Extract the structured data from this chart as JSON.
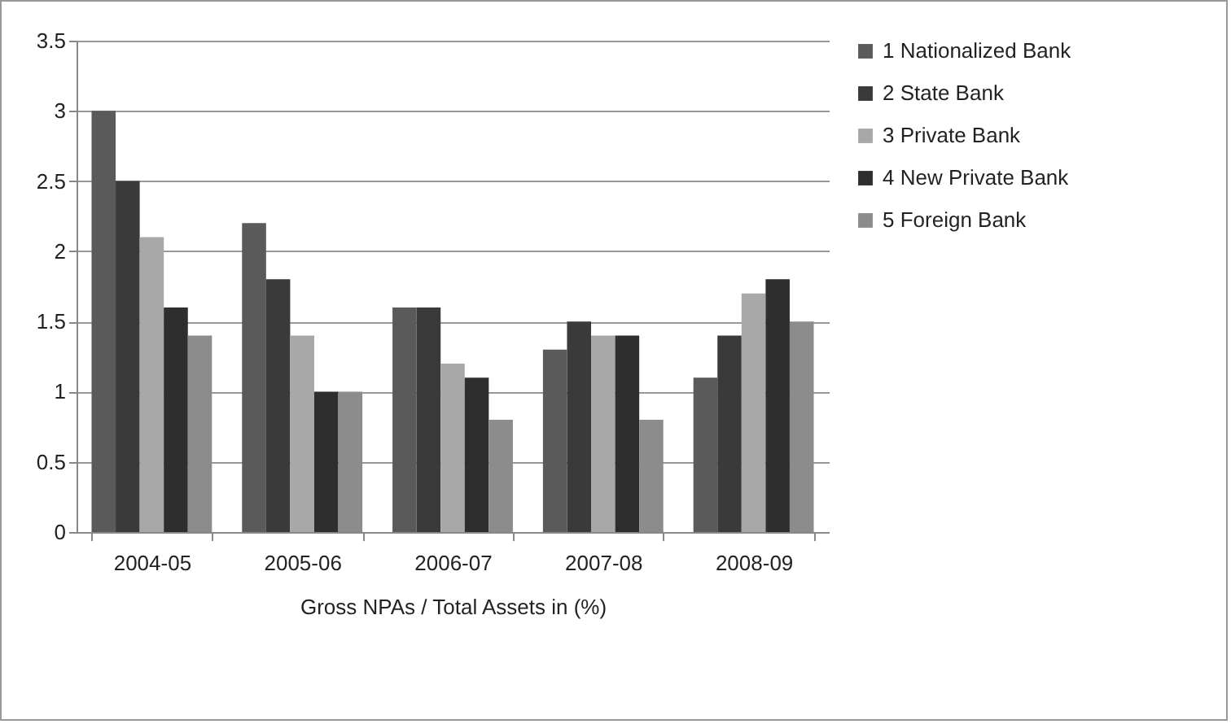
{
  "chart_data": {
    "type": "bar",
    "xlabel": "Gross NPAs / Total Assets  in (%)",
    "categories": [
      "2004-05",
      "2005-06",
      "2006-07",
      "2007-08",
      "2008-09"
    ],
    "series": [
      {
        "name": "1 Nationalized Bank",
        "color": "#5a5a5a",
        "values": [
          3,
          2.2,
          1.6,
          1.3,
          1.1
        ]
      },
      {
        "name": "2 State Bank",
        "color": "#3a3a3a",
        "values": [
          2.5,
          1.8,
          1.6,
          1.5,
          1.4
        ]
      },
      {
        "name": "3 Private Bank",
        "color": "#a8a8a8",
        "values": [
          2.1,
          1.4,
          1.2,
          1.4,
          1.7
        ]
      },
      {
        "name": "4 New Private Bank",
        "color": "#2e2e2e",
        "values": [
          1.6,
          1,
          1.1,
          1.4,
          1.8
        ]
      },
      {
        "name": "5 Foreign Bank",
        "color": "#8c8c8c",
        "values": [
          1.4,
          1,
          0.8,
          0.8,
          1.5
        ]
      }
    ],
    "ylim": [
      0,
      3.5
    ],
    "yticks": [
      0,
      0.5,
      1,
      1.5,
      2,
      2.5,
      3,
      3.5
    ],
    "grid": "y",
    "legend": "right"
  }
}
